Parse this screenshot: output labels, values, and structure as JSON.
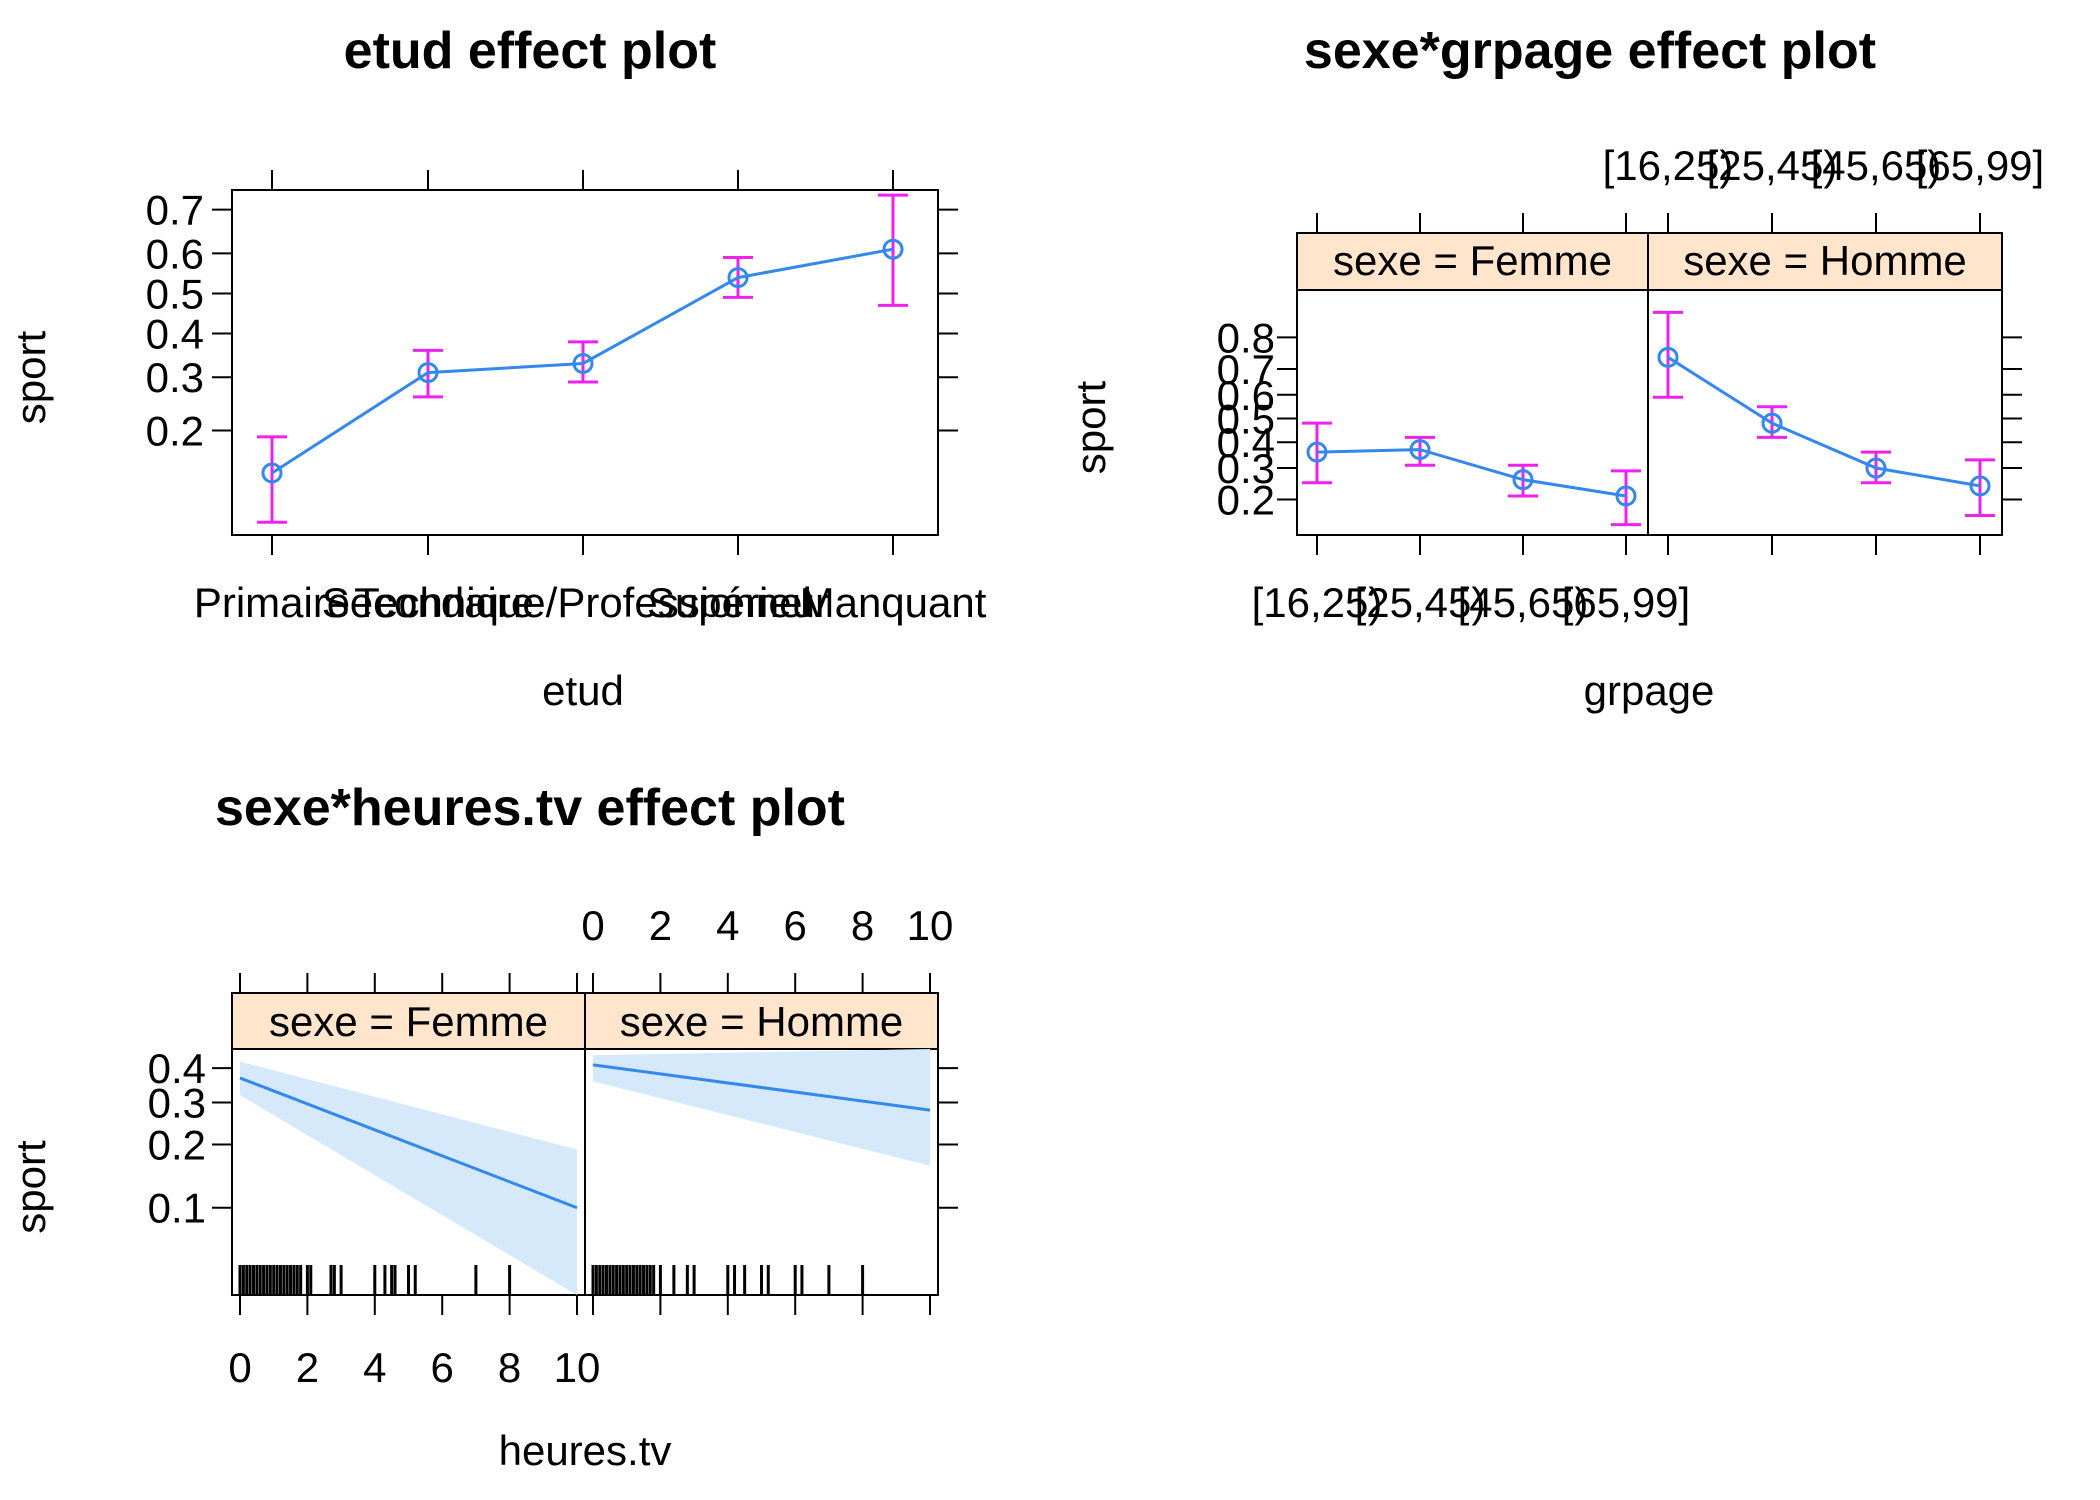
{
  "chart_data": [
    {
      "type": "line",
      "title": "etud effect plot",
      "xlabel": "etud",
      "ylabel": "sport",
      "categories": [
        "Primaire",
        "Secondaire",
        "Technique/Professionnel",
        "Supérieur",
        "Manquant"
      ],
      "values": [
        0.14,
        0.31,
        0.33,
        0.54,
        0.61
      ],
      "lower": [
        0.09,
        0.26,
        0.29,
        0.49,
        0.47
      ],
      "upper": [
        0.19,
        0.36,
        0.38,
        0.59,
        0.73
      ],
      "yticks": [
        0.2,
        0.3,
        0.4,
        0.5,
        0.6,
        0.7
      ],
      "ytick_labels": [
        "0.2",
        "0.3",
        "0.4",
        "0.5",
        "0.6",
        "0.7"
      ],
      "ylim": [
        0.08,
        0.74
      ],
      "colors": {
        "line": "#3388ee",
        "error_bar": "#ee22ee"
      }
    },
    {
      "type": "line",
      "title": "sexe*grpage effect plot",
      "xlabel": "grpage",
      "ylabel": "sport",
      "categories": [
        "[16,25)",
        "[25,45)",
        "[45,65)",
        "[65,99]"
      ],
      "panels": [
        {
          "strip": "sexe = Femme",
          "values": [
            0.36,
            0.37,
            0.26,
            0.21
          ],
          "lower": [
            0.25,
            0.31,
            0.21,
            0.14
          ],
          "upper": [
            0.48,
            0.42,
            0.31,
            0.29
          ]
        },
        {
          "strip": "sexe = Homme",
          "values": [
            0.74,
            0.48,
            0.3,
            0.24
          ],
          "lower": [
            0.59,
            0.42,
            0.25,
            0.16
          ],
          "upper": [
            0.86,
            0.55,
            0.36,
            0.33
          ]
        }
      ],
      "yticks": [
        0.2,
        0.3,
        0.4,
        0.5,
        0.6,
        0.7,
        0.8
      ],
      "ytick_labels": [
        "0.2",
        "0.3",
        "0.4",
        "0.5",
        "0.6",
        "0.7",
        "0.8"
      ],
      "ylim": [
        0.12,
        0.9
      ],
      "colors": {
        "line": "#3388ee",
        "error_bar": "#ee22ee",
        "strip": "#ffe5cc"
      }
    },
    {
      "type": "area",
      "title": "sexe*heures.tv effect plot",
      "xlabel": "heures.tv",
      "ylabel": "sport",
      "xlim": [
        0,
        10
      ],
      "xticks": [
        0,
        2,
        4,
        6,
        8,
        10
      ],
      "xtick_labels": [
        "0",
        "2",
        "4",
        "6",
        "8",
        "10"
      ],
      "panels": [
        {
          "strip": "sexe = Femme",
          "x": [
            0,
            10
          ],
          "fit": [
            0.37,
            0.1
          ],
          "lower": [
            0.32,
            0.035
          ],
          "upper": [
            0.42,
            0.19
          ],
          "rug": [
            0,
            0.1,
            0.2,
            0.3,
            0.4,
            0.5,
            0.6,
            0.7,
            0.8,
            0.9,
            1,
            1.1,
            1.2,
            1.3,
            1.4,
            1.5,
            1.6,
            1.7,
            1.8,
            2,
            2.1,
            2.7,
            2.8,
            3,
            4,
            4.3,
            4.5,
            4.6,
            5,
            5.2,
            7,
            8
          ]
        },
        {
          "strip": "sexe = Homme",
          "x": [
            0,
            10
          ],
          "fit": [
            0.41,
            0.28
          ],
          "lower": [
            0.36,
            0.16
          ],
          "upper": [
            0.44,
            0.46
          ],
          "rug": [
            0,
            0.1,
            0.2,
            0.3,
            0.4,
            0.5,
            0.6,
            0.7,
            0.8,
            0.9,
            1,
            1.1,
            1.2,
            1.3,
            1.4,
            1.5,
            1.6,
            1.7,
            1.8,
            2,
            2.4,
            2.8,
            3,
            4,
            4.2,
            4.5,
            5,
            5.2,
            6,
            6.2,
            7,
            8
          ]
        }
      ],
      "yticks": [
        0.1,
        0.2,
        0.3,
        0.4
      ],
      "ytick_labels": [
        "0.1",
        "0.2",
        "0.3",
        "0.4"
      ],
      "ylim": [
        0.035,
        0.46
      ],
      "colors": {
        "line": "#3388ee",
        "band": "#d6e9fb",
        "strip": "#ffe5cc",
        "rug": "#000000"
      }
    }
  ]
}
